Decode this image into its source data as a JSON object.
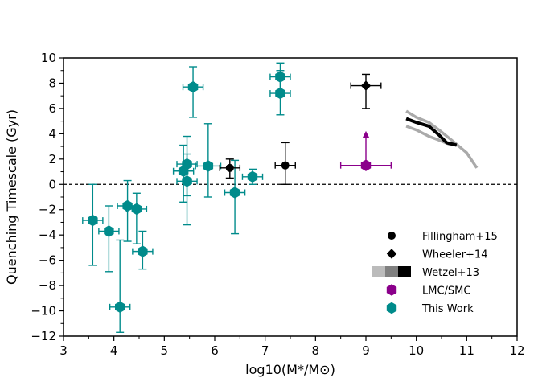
{
  "chart_data": {
    "type": "scatter",
    "title": "",
    "xlabel": "log10(M*/M⊙)",
    "ylabel": "Quenching Timescale (Gyr)",
    "xlim": [
      3,
      12
    ],
    "ylim": [
      -12,
      10
    ],
    "xticks": [
      3,
      4,
      5,
      6,
      7,
      8,
      9,
      10,
      11,
      12
    ],
    "yticks": [
      -12,
      -10,
      -8,
      -6,
      -4,
      -2,
      0,
      2,
      4,
      6,
      8,
      10
    ],
    "xtick_labels": [
      "3",
      "4",
      "5",
      "6",
      "7",
      "8",
      "9",
      "10",
      "11",
      "12"
    ],
    "ytick_labels": [
      "−12",
      "−10",
      "−8",
      "−6",
      "−4",
      "−2",
      "0",
      "2",
      "4",
      "6",
      "8",
      "10"
    ],
    "reference_line": {
      "y": 0,
      "style": "dashed"
    },
    "legend": {
      "position": "lower-right",
      "entries": [
        {
          "label": "Fillingham+15",
          "marker": "circle",
          "color": "#000000"
        },
        {
          "label": "Wheeler+14",
          "marker": "diamond",
          "color": "#000000"
        },
        {
          "label": "Wetzel+13",
          "marker": "bands",
          "color": "#000000"
        },
        {
          "label": "LMC/SMC",
          "marker": "hexagon",
          "color": "#8b008b"
        },
        {
          "label": "This Work",
          "marker": "hexagon",
          "color": "#008b8b"
        }
      ]
    },
    "series": [
      {
        "name": "This Work",
        "marker": "hexagon",
        "color": "#008b8b",
        "points": [
          {
            "x": 3.58,
            "y": -2.85,
            "xerr": 0.2,
            "ylo": -6.4,
            "yhi": 0.0
          },
          {
            "x": 3.9,
            "y": -3.7,
            "xerr": 0.2,
            "ylo": -6.9,
            "yhi": -1.7
          },
          {
            "x": 4.12,
            "y": -9.7,
            "xerr": 0.2,
            "ylo": -11.7,
            "yhi": -4.4
          },
          {
            "x": 4.27,
            "y": -1.7,
            "xerr": 0.2,
            "ylo": -4.5,
            "yhi": 0.3
          },
          {
            "x": 4.45,
            "y": -1.95,
            "xerr": 0.2,
            "ylo": -4.7,
            "yhi": -0.7
          },
          {
            "x": 4.57,
            "y": -5.3,
            "xerr": 0.2,
            "ylo": -6.7,
            "yhi": -3.7
          },
          {
            "x": 5.38,
            "y": 1.05,
            "xerr": 0.2,
            "ylo": -1.4,
            "yhi": 3.1
          },
          {
            "x": 5.45,
            "y": 1.6,
            "xerr": 0.2,
            "ylo": -0.9,
            "yhi": 3.8
          },
          {
            "x": 5.45,
            "y": 0.25,
            "xerr": 0.2,
            "ylo": -3.2,
            "yhi": 2.4
          },
          {
            "x": 5.57,
            "y": 7.7,
            "xerr": 0.2,
            "ylo": 5.3,
            "yhi": 9.3
          },
          {
            "x": 5.87,
            "y": 1.45,
            "xerr": 0.25,
            "ylo": -1.0,
            "yhi": 4.8
          },
          {
            "x": 6.4,
            "y": -0.65,
            "xerr": 0.2,
            "ylo": -3.9,
            "yhi": 1.9
          },
          {
            "x": 6.75,
            "y": 0.6,
            "xerr": 0.2,
            "ylo": 0.0,
            "yhi": 1.2
          },
          {
            "x": 7.3,
            "y": 8.5,
            "xerr": 0.2,
            "ylo": 7.1,
            "yhi": 9.6
          },
          {
            "x": 7.3,
            "y": 7.2,
            "xerr": 0.2,
            "ylo": 5.5,
            "yhi": 9.0
          }
        ]
      },
      {
        "name": "Fillingham+15",
        "marker": "circle",
        "color": "#000000",
        "points": [
          {
            "x": 6.3,
            "y": 1.3,
            "xerr": 0.2,
            "ylo": 0.5,
            "yhi": 2.0
          },
          {
            "x": 7.4,
            "y": 1.5,
            "xerr": 0.2,
            "ylo": 0.0,
            "yhi": 3.3
          }
        ]
      },
      {
        "name": "Wheeler+14",
        "marker": "diamond",
        "color": "#000000",
        "points": [
          {
            "x": 9.0,
            "y": 7.8,
            "xerr": 0.3,
            "ylo": 6.0,
            "yhi": 8.7
          }
        ]
      },
      {
        "name": "LMC/SMC",
        "marker": "hexagon",
        "color": "#8b008b",
        "points": [
          {
            "x": 9.0,
            "y": 1.5,
            "xerr": 0.5,
            "ylo": 1.5,
            "yhi": 3.9,
            "lower_limit": true
          }
        ]
      }
    ],
    "wetzel_bands": [
      {
        "name": "outer",
        "color": "#aaaaaa",
        "x": [
          9.8,
          10.0,
          10.25,
          10.45,
          10.7,
          11.0,
          11.2
        ],
        "y": [
          5.8,
          5.3,
          4.9,
          4.3,
          3.5,
          2.5,
          1.3
        ]
      },
      {
        "name": "inner",
        "color": "#aaaaaa",
        "x": [
          9.8,
          10.0,
          10.25,
          10.45,
          10.7
        ],
        "y": [
          4.6,
          4.3,
          3.8,
          3.5,
          3.1
        ]
      },
      {
        "name": "median",
        "color": "#000000",
        "x": [
          9.8,
          10.0,
          10.25,
          10.45,
          10.6,
          10.8
        ],
        "y": [
          5.2,
          4.9,
          4.6,
          3.9,
          3.3,
          3.1
        ]
      }
    ]
  }
}
